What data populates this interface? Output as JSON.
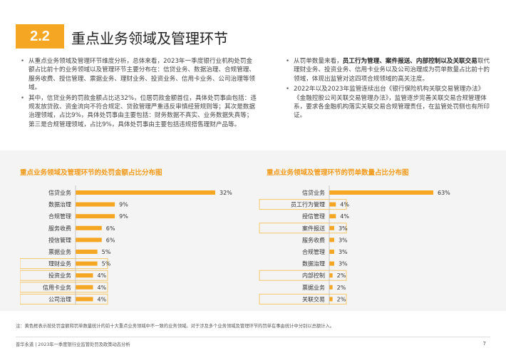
{
  "section": {
    "number": "2.2",
    "title": "重点业务领域及管理环节"
  },
  "left_text": {
    "bullets": [
      "从重点业务领域及管理环节维度分析，总体来看，2023年一季度银行业机构处罚金额占比前十的业务领域以及管理环节主要分布在：信贷业务、数据治理、合规管理、服务收费、授信管理、票据业务、理财业务、投资业务、信用卡业务、公司治理等领域。",
      "其中，信贷业务的罚款金额占比达32%，位居罚款金额首位，具体处罚事由包括：违规发放贷款、资金流向不符合规定、贷款管理严重违反审慎经营规则等；其次是数据治理领域，占比9%，具体处罚事由主要包括：财务数据不真实、业务数据失真等；第三是合规管理领域，占比9%，具体处罚事由主要包括违规搭售理财产品等。"
    ]
  },
  "right_text": {
    "bullet1_prefix": "从罚单数量来看，",
    "bullet1_highlight": "员工行为管理、案件报送、内部控制以及关联交易",
    "bullet1_suffix": "取代理财业务、投资业务、信用卡业务以及公司治理成为罚单数量占比前十的领域，体现出监管对这四项合规领域的高关注度。",
    "bullet2": "2022年以及2023年监管连续出台《银行保险机构关联交易管理办法》《金融控股公司关联交易管理办法》，监管逐步完善关联交易合规管理体系，要求各金融机构落实关联交易合规管理责任，在监管处罚侧也有所印证。"
  },
  "colors": {
    "accent": "#f5a623",
    "bar": "#f5a623",
    "title": "#f29a1a",
    "highlight_border": "#f5c76b",
    "band": "#f4f4f4"
  },
  "chart_data": [
    {
      "type": "bar",
      "orientation": "horizontal",
      "title": "重点业务领域及管理环节的处罚金额占比分布图",
      "categories": [
        "信贷业务",
        "数据治理",
        "合规管理",
        "服务收费",
        "授信管理",
        "票据业务",
        "理财业务",
        "投资业务",
        "信用卡业务",
        "公司治理"
      ],
      "values": [
        32,
        9,
        9,
        6,
        6,
        5,
        5,
        4,
        4,
        4
      ],
      "value_labels": [
        "32%",
        "9%",
        "9%",
        "6%",
        "6%",
        "5%",
        "5%",
        "4%",
        "4%",
        "4%"
      ],
      "highlighted": [
        "理财业务",
        "投资业务",
        "信用卡业务",
        "公司治理"
      ],
      "unit": "%"
    },
    {
      "type": "bar",
      "orientation": "horizontal",
      "title": "重点业务领域及管理环节的罚单数量占比分布图",
      "categories": [
        "信贷业务",
        "员工行为管理",
        "授信管理",
        "案件报送",
        "服务收费",
        "合规管理",
        "数据治理",
        "内部控制",
        "票据业务",
        "关联交易"
      ],
      "values": [
        63,
        4,
        4,
        3,
        3,
        3,
        3,
        2,
        2,
        2
      ],
      "value_labels": [
        "63%",
        "4%",
        "4%",
        "3%",
        "3%",
        "3%",
        "3%",
        "2%",
        "2%",
        "2%"
      ],
      "highlighted": [
        "员工行为管理",
        "案件报送",
        "内部控制",
        "关联交易"
      ],
      "unit": "%"
    }
  ],
  "footnote": "注：黄色框表示按处罚金额和罚单数量统计的前十大重点业务领域中不一致的业务领域。对于涉及多个业务领域及管理环节的罚单在事由统计中分别以总额计入。",
  "footer": {
    "text": "普华永道 | 2023年一季度银行业监管处罚及政策动态分析",
    "page": "7"
  }
}
